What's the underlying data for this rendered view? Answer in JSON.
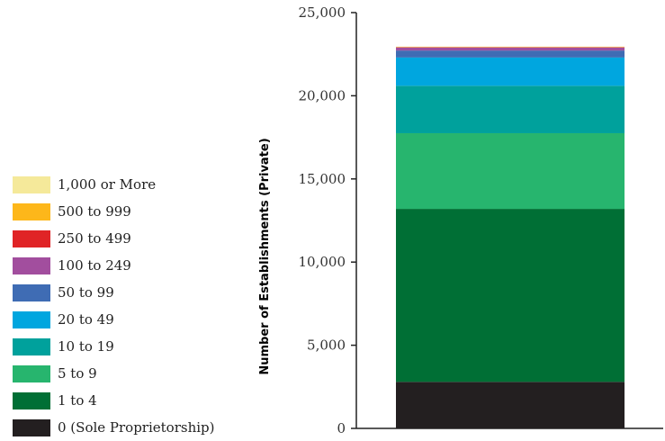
{
  "chart_data": {
    "type": "bar",
    "stacked": true,
    "title": "",
    "xlabel": "",
    "ylabel": "Number of Establishments (Private)",
    "ylim": [
      0,
      25000
    ],
    "yticks": [
      "0",
      "5,000",
      "10,000",
      "15,000",
      "20,000",
      "25,000"
    ],
    "ytick_values": [
      0,
      5000,
      10000,
      15000,
      20000,
      25000
    ],
    "categories": [
      ""
    ],
    "series": [
      {
        "name": "0 (Sole Proprietorship)",
        "values": [
          2800
        ],
        "color": "#231f20"
      },
      {
        "name": "1 to 4",
        "values": [
          10400
        ],
        "color": "#006f35"
      },
      {
        "name": "5 to 9",
        "values": [
          4550
        ],
        "color": "#27b56e"
      },
      {
        "name": "10 to 19",
        "values": [
          2850
        ],
        "color": "#00a19c"
      },
      {
        "name": "20 to 49",
        "values": [
          1700
        ],
        "color": "#00a6df"
      },
      {
        "name": "50 to 99",
        "values": [
          420
        ],
        "color": "#3f6cb4"
      },
      {
        "name": "100 to 249",
        "values": [
          180
        ],
        "color": "#a24e9e"
      },
      {
        "name": "250 to 499",
        "values": [
          30
        ],
        "color": "#e02426"
      },
      {
        "name": "500 to 999",
        "values": [
          15
        ],
        "color": "#fdb71a"
      },
      {
        "name": "1,000 or More",
        "values": [
          10
        ],
        "color": "#f5e99a"
      }
    ],
    "legend_position": "left",
    "grid": false
  }
}
